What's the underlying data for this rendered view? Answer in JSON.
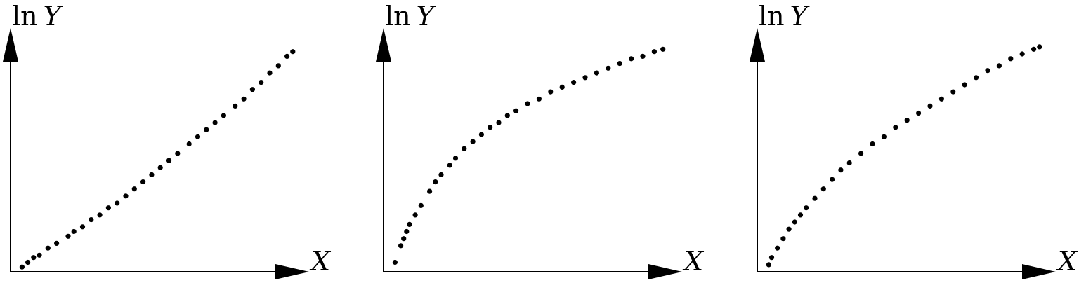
{
  "chart_data": [
    {
      "type": "scatter",
      "ylabel_prefix": "ln",
      "ylabel_var": "Y",
      "xlabel": "X",
      "xlim": [
        0,
        1
      ],
      "ylim": [
        0,
        1
      ],
      "points": [
        [
          0.04,
          0.02
        ],
        [
          0.06,
          0.04
        ],
        [
          0.08,
          0.06
        ],
        [
          0.1,
          0.07
        ],
        [
          0.13,
          0.1
        ],
        [
          0.16,
          0.12
        ],
        [
          0.2,
          0.15
        ],
        [
          0.22,
          0.17
        ],
        [
          0.25,
          0.19
        ],
        [
          0.28,
          0.22
        ],
        [
          0.31,
          0.24
        ],
        [
          0.34,
          0.27
        ],
        [
          0.37,
          0.29
        ],
        [
          0.4,
          0.32
        ],
        [
          0.43,
          0.35
        ],
        [
          0.46,
          0.38
        ],
        [
          0.49,
          0.41
        ],
        [
          0.52,
          0.44
        ],
        [
          0.55,
          0.47
        ],
        [
          0.58,
          0.5
        ],
        [
          0.62,
          0.54
        ],
        [
          0.65,
          0.57
        ],
        [
          0.68,
          0.6
        ],
        [
          0.71,
          0.63
        ],
        [
          0.74,
          0.66
        ],
        [
          0.78,
          0.7
        ],
        [
          0.81,
          0.73
        ],
        [
          0.84,
          0.77
        ],
        [
          0.87,
          0.8
        ],
        [
          0.9,
          0.84
        ],
        [
          0.93,
          0.87
        ],
        [
          0.96,
          0.91
        ],
        [
          0.98,
          0.93
        ]
      ]
    },
    {
      "type": "scatter",
      "ylabel_prefix": "ln",
      "ylabel_var": "Y",
      "xlabel": "X",
      "xlim": [
        0,
        1
      ],
      "ylim": [
        0,
        1
      ],
      "points": [
        [
          0.04,
          0.04
        ],
        [
          0.06,
          0.11
        ],
        [
          0.07,
          0.14
        ],
        [
          0.08,
          0.17
        ],
        [
          0.09,
          0.2
        ],
        [
          0.11,
          0.24
        ],
        [
          0.13,
          0.28
        ],
        [
          0.16,
          0.34
        ],
        [
          0.18,
          0.38
        ],
        [
          0.2,
          0.41
        ],
        [
          0.23,
          0.45
        ],
        [
          0.25,
          0.48
        ],
        [
          0.28,
          0.52
        ],
        [
          0.31,
          0.55
        ],
        [
          0.34,
          0.58
        ],
        [
          0.37,
          0.61
        ],
        [
          0.4,
          0.63
        ],
        [
          0.43,
          0.66
        ],
        [
          0.46,
          0.68
        ],
        [
          0.5,
          0.71
        ],
        [
          0.54,
          0.73
        ],
        [
          0.58,
          0.76
        ],
        [
          0.62,
          0.78
        ],
        [
          0.66,
          0.8
        ],
        [
          0.7,
          0.82
        ],
        [
          0.74,
          0.84
        ],
        [
          0.78,
          0.86
        ],
        [
          0.82,
          0.88
        ],
        [
          0.86,
          0.9
        ],
        [
          0.9,
          0.91
        ],
        [
          0.94,
          0.93
        ],
        [
          0.97,
          0.94
        ]
      ]
    },
    {
      "type": "scatter",
      "ylabel_prefix": "ln",
      "ylabel_var": "Y",
      "xlabel": "X",
      "xlim": [
        0,
        1
      ],
      "ylim": [
        0,
        1
      ],
      "points": [
        [
          0.04,
          0.03
        ],
        [
          0.05,
          0.06
        ],
        [
          0.07,
          0.1
        ],
        [
          0.09,
          0.14
        ],
        [
          0.11,
          0.18
        ],
        [
          0.13,
          0.21
        ],
        [
          0.15,
          0.24
        ],
        [
          0.17,
          0.27
        ],
        [
          0.2,
          0.31
        ],
        [
          0.23,
          0.35
        ],
        [
          0.26,
          0.39
        ],
        [
          0.29,
          0.43
        ],
        [
          0.32,
          0.46
        ],
        [
          0.36,
          0.5
        ],
        [
          0.4,
          0.54
        ],
        [
          0.44,
          0.57
        ],
        [
          0.48,
          0.61
        ],
        [
          0.52,
          0.64
        ],
        [
          0.56,
          0.67
        ],
        [
          0.6,
          0.7
        ],
        [
          0.64,
          0.73
        ],
        [
          0.68,
          0.76
        ],
        [
          0.72,
          0.79
        ],
        [
          0.76,
          0.82
        ],
        [
          0.8,
          0.85
        ],
        [
          0.84,
          0.87
        ],
        [
          0.88,
          0.9
        ],
        [
          0.92,
          0.92
        ],
        [
          0.96,
          0.94
        ],
        [
          0.98,
          0.95
        ]
      ]
    }
  ]
}
